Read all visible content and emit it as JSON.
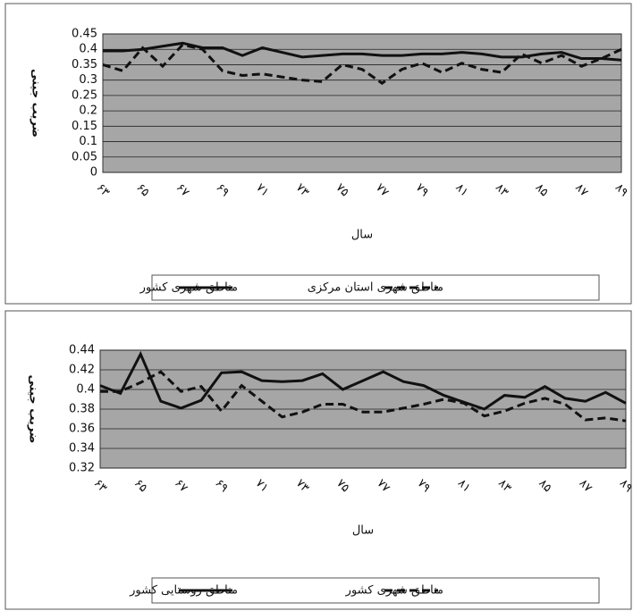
{
  "chart_data": [
    {
      "type": "line",
      "ylabel": "ضریب جینی",
      "xlabel": "سال",
      "categories": [
        "۶۳",
        null,
        "۶۵",
        null,
        "۶۷",
        null,
        "۶۹",
        null,
        "۷۱",
        null,
        "۷۳",
        null,
        "۷۵",
        null,
        "۷۷",
        null,
        "۷۹",
        null,
        "۸۱",
        null,
        "۸۳",
        null,
        "۸۵",
        null,
        "۸۷",
        null,
        "۸۹"
      ],
      "ylim": [
        0,
        0.45
      ],
      "yticks": [
        0,
        0.05,
        0.1,
        0.15,
        0.2,
        0.25,
        0.3,
        0.35,
        0.4,
        0.45
      ],
      "grid": true,
      "legend": "bottom",
      "series": [
        {
          "name": "مناطق شهری کشور",
          "color": "#111111",
          "dashed": false,
          "values": [
            0.395,
            0.395,
            0.4,
            0.41,
            0.42,
            0.405,
            0.405,
            0.38,
            0.405,
            0.39,
            0.375,
            0.38,
            0.385,
            0.385,
            0.38,
            0.38,
            0.385,
            0.385,
            0.39,
            0.385,
            0.375,
            0.375,
            0.385,
            0.39,
            0.37,
            0.37,
            0.365
          ]
        },
        {
          "name": "مناطق شهری استان مرکزی",
          "color": "#111111",
          "dashed": true,
          "values": [
            0.35,
            0.33,
            0.405,
            0.345,
            0.415,
            0.4,
            0.33,
            0.315,
            0.32,
            0.31,
            0.3,
            0.295,
            0.35,
            0.335,
            0.29,
            0.335,
            0.355,
            0.325,
            0.355,
            0.335,
            0.325,
            0.385,
            0.355,
            0.38,
            0.345,
            0.37,
            0.4
          ]
        }
      ]
    },
    {
      "type": "line",
      "ylabel": "ضریب جینی",
      "xlabel": "سال",
      "categories": [
        "۶۳",
        null,
        "۶۵",
        null,
        "۶۷",
        null,
        "۶۹",
        null,
        "۷۱",
        null,
        "۷۳",
        null,
        "۷۵",
        null,
        "۷۷",
        null,
        "۷۹",
        null,
        "۸۱",
        null,
        "۸۳",
        null,
        "۸۵",
        null,
        "۸۷",
        null,
        "۸۹"
      ],
      "ylim": [
        0.32,
        0.44
      ],
      "yticks": [
        0.32,
        0.34,
        0.36,
        0.38,
        0.4,
        0.42,
        0.44
      ],
      "grid": true,
      "legend": "bottom",
      "series": [
        {
          "name": "مناطق روستایی کشور",
          "color": "#111111",
          "dashed": false,
          "values": [
            0.404,
            0.396,
            0.436,
            0.388,
            0.381,
            0.389,
            0.417,
            0.418,
            0.409,
            0.408,
            0.409,
            0.416,
            0.4,
            0.409,
            0.418,
            0.408,
            0.404,
            0.394,
            0.387,
            0.38,
            0.394,
            0.392,
            0.403,
            0.391,
            0.388,
            0.397,
            0.386
          ]
        },
        {
          "name": "مناطق شهری کشور",
          "color": "#111111",
          "dashed": true,
          "values": [
            0.398,
            0.398,
            0.407,
            0.418,
            0.398,
            0.403,
            0.378,
            0.404,
            0.388,
            0.372,
            0.377,
            0.385,
            0.385,
            0.377,
            0.377,
            0.381,
            0.385,
            0.39,
            0.386,
            0.373,
            0.378,
            0.386,
            0.391,
            0.385,
            0.369,
            0.371,
            0.368
          ]
        }
      ]
    }
  ]
}
